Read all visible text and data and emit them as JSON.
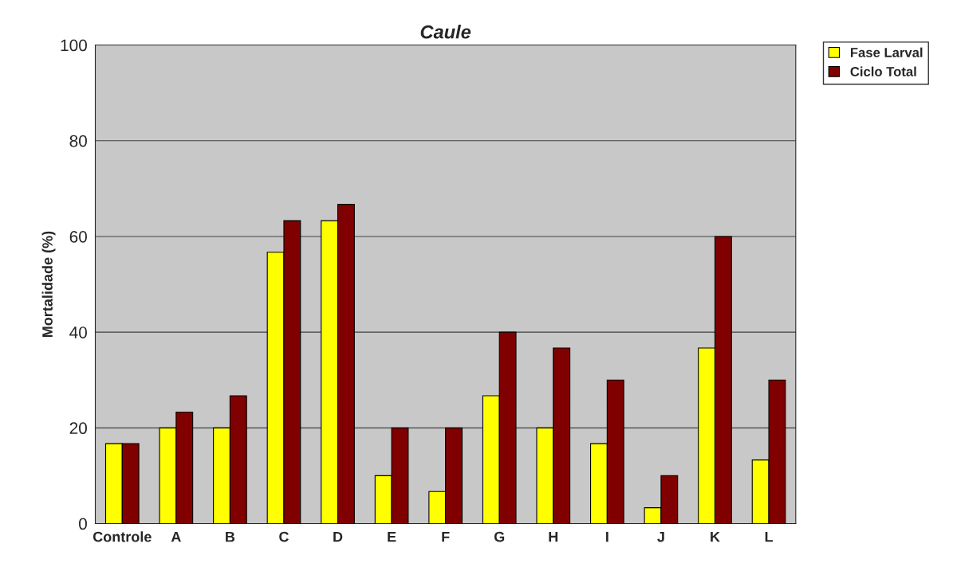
{
  "chart_data": {
    "type": "bar",
    "title": "Caule",
    "ylabel": "Mortalidade (%)",
    "categories": [
      "Controle",
      "A",
      "B",
      "C",
      "D",
      "E",
      "F",
      "G",
      "H",
      "I",
      "J",
      "K",
      "L"
    ],
    "series": [
      {
        "name": "Fase Larval",
        "color": "#ffff00",
        "values": [
          16.7,
          20,
          20,
          56.7,
          63.3,
          10,
          6.7,
          26.7,
          20,
          16.7,
          3.3,
          36.7,
          13.3
        ]
      },
      {
        "name": "Ciclo Total",
        "color": "#800000",
        "values": [
          16.7,
          23.3,
          26.7,
          63.3,
          66.7,
          20,
          20,
          40,
          36.7,
          30,
          10,
          60,
          30
        ]
      }
    ],
    "ylim": [
      0,
      100
    ],
    "yticks": [
      0,
      20,
      40,
      60,
      80,
      100
    ],
    "grid": "y",
    "legend": "top right"
  }
}
